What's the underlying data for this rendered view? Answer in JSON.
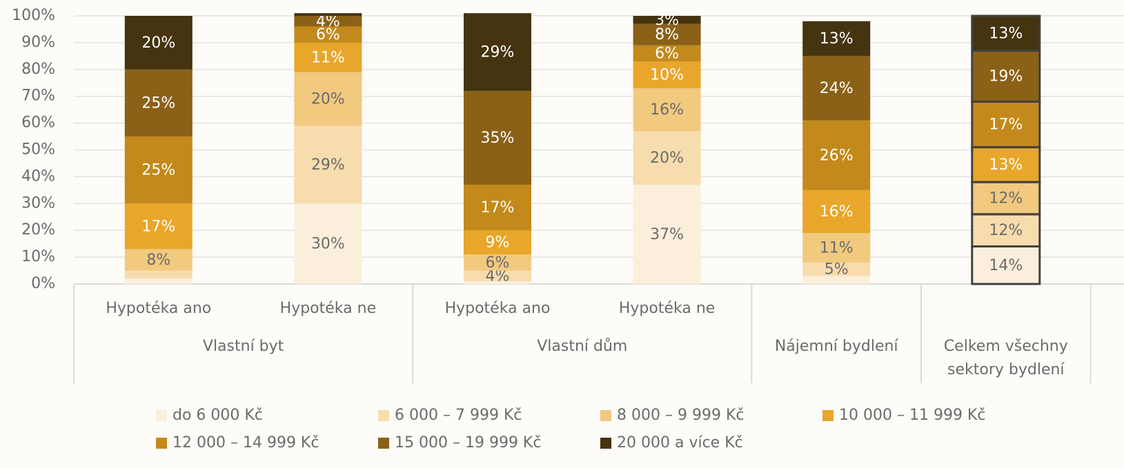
{
  "chart_data": {
    "type": "stacked_bar",
    "categories": [
      "Hypotéka ano",
      "Hypotéka ne",
      "Hypotéka ano",
      "Hypotéka ne",
      null,
      null
    ],
    "groups": [
      {
        "label": "Vlastní byt",
        "span": 2
      },
      {
        "label": "Vlastní dům",
        "span": 2
      },
      {
        "label": "Nájemní bydlení",
        "span": 1
      },
      {
        "label": "Celkem všechny sektory bydlení",
        "span": 1
      }
    ],
    "series": [
      {
        "name": "do 6 000 Kč",
        "color": "#fbefdc",
        "label_color": "#6b6b6b",
        "values": [
          2,
          30,
          1,
          37,
          3,
          14
        ],
        "value_labels": [
          null,
          "30%",
          null,
          "37%",
          null,
          "14%"
        ]
      },
      {
        "name": "6 000 – 7 999 Kč",
        "color": "#f7dcad",
        "label_color": "#6b6b6b",
        "values": [
          3,
          29,
          4,
          20,
          5,
          12
        ],
        "value_labels": [
          null,
          "29%",
          "4%",
          "20%",
          "5%",
          "12%"
        ]
      },
      {
        "name": "8 000 – 9 999 Kč",
        "color": "#f1c97f",
        "label_color": "#6b6b6b",
        "values": [
          8,
          20,
          6,
          16,
          11,
          12
        ],
        "value_labels": [
          "8%",
          "20%",
          "6%",
          "16%",
          "11%",
          "12%"
        ]
      },
      {
        "name": "10 000 – 11 999 Kč",
        "color": "#e8a62a",
        "label_color": "#ffffff",
        "values": [
          17,
          11,
          9,
          10,
          16,
          13
        ],
        "value_labels": [
          "17%",
          "11%",
          "9%",
          "10%",
          "16%",
          "13%"
        ]
      },
      {
        "name": "12 000 – 14 999 Kč",
        "color": "#c3891b",
        "label_color": "#ffffff",
        "values": [
          25,
          6,
          17,
          6,
          26,
          17
        ],
        "value_labels": [
          "25%",
          "6%",
          "17%",
          "6%",
          "26%",
          "17%"
        ]
      },
      {
        "name": "15 000 – 19 999 Kč",
        "color": "#8b6118",
        "label_color": "#ffffff",
        "values": [
          25,
          4,
          35,
          8,
          24,
          19
        ],
        "value_labels": [
          "25%",
          "4%",
          "35%",
          "8%",
          "24%",
          "19%"
        ]
      },
      {
        "name": "20 000 a více Kč",
        "color": "#45340f",
        "label_color": "#ffffff",
        "values": [
          20,
          1,
          29,
          3,
          13,
          13
        ],
        "value_labels": [
          "20%",
          null,
          "29%",
          "3%",
          "13%",
          "13%"
        ]
      }
    ],
    "highlight_category": 5,
    "ylim": [
      0,
      100
    ],
    "yticks": [
      {
        "value": 0,
        "label": "0%"
      },
      {
        "value": 10,
        "label": "10%"
      },
      {
        "value": 20,
        "label": "20%"
      },
      {
        "value": 30,
        "label": "30%"
      },
      {
        "value": 40,
        "label": "40%"
      },
      {
        "value": 50,
        "label": "50%"
      },
      {
        "value": 60,
        "label": "60%"
      },
      {
        "value": 70,
        "label": "70%"
      },
      {
        "value": 80,
        "label": "80%"
      },
      {
        "value": 90,
        "label": "90%"
      },
      {
        "value": 100,
        "label": "100%"
      }
    ],
    "grid": true
  }
}
